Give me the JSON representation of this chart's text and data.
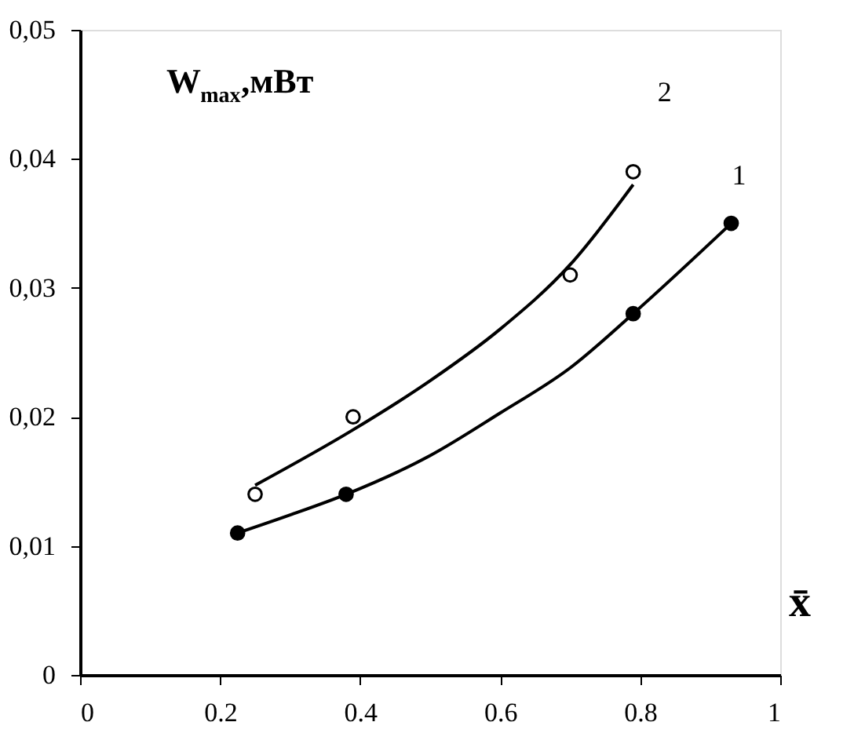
{
  "chart_data": {
    "type": "scatter",
    "xlabel": "x̄",
    "ylabel": "W$_{max}$,мВт",
    "xlim": [
      0,
      1
    ],
    "xticks": [
      0,
      0.2,
      0.4,
      0.6,
      0.8,
      1
    ],
    "ylim": [
      0,
      0.05
    ],
    "yticks": [
      {
        "value": 0,
        "label": "0"
      },
      {
        "value": 0.01,
        "label": "0,01"
      },
      {
        "value": 0.02,
        "label": "0,02"
      },
      {
        "value": 0.03,
        "label": "0,03"
      },
      {
        "value": 0.04,
        "label": "0,04"
      },
      {
        "value": 0.05,
        "label": "0,05"
      }
    ],
    "grid": false,
    "series": [
      {
        "name": "1",
        "marker": "circle",
        "color": "#000000",
        "x": [
          0.225,
          0.38,
          0.79,
          0.93
        ],
        "values": [
          0.011,
          0.014,
          0.028,
          0.035
        ]
      },
      {
        "name": "2",
        "marker": "circle",
        "color": "#ffffff",
        "x": [
          0.25,
          0.39,
          0.7,
          0.79
        ],
        "values": [
          0.014,
          0.02,
          0.031,
          0.039
        ]
      },
      {
        "type": "line",
        "marker": "none",
        "line_style": "solid",
        "color": "#000000",
        "x": [
          0.225,
          0.3,
          0.38,
          0.5,
          0.6,
          0.7,
          0.79,
          0.93
        ],
        "values": [
          0.011,
          0.0124,
          0.014,
          0.017,
          0.0203,
          0.0238,
          0.028,
          0.035
        ]
      },
      {
        "type": "line",
        "marker": "none",
        "line_style": "solid",
        "color": "#000000",
        "x": [
          0.25,
          0.39,
          0.5,
          0.6,
          0.7,
          0.79
        ],
        "values": [
          0.0147,
          0.019,
          0.0228,
          0.0268,
          0.0318,
          0.038
        ]
      }
    ]
  }
}
